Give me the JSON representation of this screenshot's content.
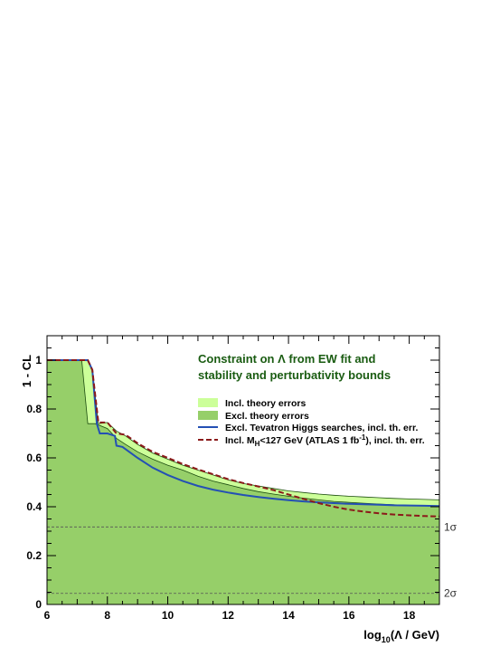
{
  "chart_data": {
    "type": "area",
    "title_lines": [
      "Constraint on Λ from EW fit and",
      "stability and perturbativity bounds"
    ],
    "xlabel": "log₁₀(Λ / GeV)",
    "ylabel": "1 - CL",
    "xlim": [
      6,
      19
    ],
    "ylim": [
      0,
      1.1
    ],
    "x_ticks": [
      6,
      8,
      10,
      12,
      14,
      16,
      18
    ],
    "y_ticks": [
      0,
      0.2,
      0.4,
      0.6,
      0.8,
      1
    ],
    "legend_placement": "top-right",
    "reference_lines": [
      {
        "label": "1σ",
        "y": 0.3173
      },
      {
        "label": "2σ",
        "y": 0.0455
      }
    ],
    "colors": {
      "incl_band": "#ccff99",
      "excl_band": "#96cf69",
      "tevatron": "#2450b4",
      "atlas": "#8b1a1a",
      "title": "#1a5c12"
    },
    "series": [
      {
        "name": "Incl. theory errors",
        "kind": "band",
        "color": "#ccff99",
        "x": [
          6,
          7.35,
          7.5,
          7.7,
          8,
          8.3,
          8.6,
          9,
          9.5,
          10,
          10.5,
          11,
          11.5,
          12,
          12.5,
          13,
          13.5,
          14,
          14.5,
          15,
          15.5,
          16,
          16.5,
          17,
          17.5,
          18,
          18.5,
          19
        ],
        "y": [
          1,
          1,
          0.96,
          0.74,
          0.745,
          0.71,
          0.69,
          0.655,
          0.62,
          0.595,
          0.57,
          0.55,
          0.53,
          0.51,
          0.495,
          0.485,
          0.475,
          0.465,
          0.458,
          0.452,
          0.447,
          0.443,
          0.44,
          0.437,
          0.434,
          0.432,
          0.43,
          0.428
        ]
      },
      {
        "name": "Excl. theory errors",
        "kind": "band",
        "color": "#96cf69",
        "x": [
          6,
          7.15,
          7.35,
          7.6,
          8,
          8.3,
          8.6,
          9,
          9.5,
          10,
          10.5,
          11,
          11.5,
          12,
          12.5,
          13,
          13.5,
          14,
          14.5,
          15,
          15.5,
          16,
          16.5,
          17,
          17.5,
          18,
          18.5,
          19
        ],
        "y": [
          1,
          1,
          0.74,
          0.74,
          0.72,
          0.68,
          0.655,
          0.625,
          0.595,
          0.57,
          0.55,
          0.525,
          0.505,
          0.49,
          0.475,
          0.462,
          0.452,
          0.443,
          0.435,
          0.428,
          0.422,
          0.418,
          0.414,
          0.411,
          0.408,
          0.406,
          0.404,
          0.402
        ]
      },
      {
        "name": "Excl. Tevatron Higgs searches, incl. th. err.",
        "kind": "line",
        "color": "#2450b4",
        "x": [
          6,
          7.35,
          7.5,
          7.65,
          7.75,
          8,
          8.25,
          8.3,
          8.5,
          9,
          9.5,
          10,
          10.5,
          11,
          11.5,
          12,
          12.5,
          13,
          13.5,
          14,
          14.5,
          15,
          15.5,
          16,
          16.5,
          17,
          17.5,
          18,
          18.5,
          19
        ],
        "y": [
          1,
          1,
          0.96,
          0.74,
          0.7,
          0.7,
          0.69,
          0.65,
          0.645,
          0.6,
          0.56,
          0.53,
          0.505,
          0.485,
          0.47,
          0.458,
          0.448,
          0.44,
          0.433,
          0.427,
          0.422,
          0.418,
          0.415,
          0.412,
          0.41,
          0.408,
          0.406,
          0.405,
          0.404,
          0.403
        ]
      },
      {
        "name": "Incl. M_H<127 GeV (ATLAS 1 fb⁻¹), incl. th. err.",
        "kind": "dashed-line",
        "color": "#8b1a1a",
        "x": [
          6,
          7.35,
          7.5,
          7.7,
          8,
          8.3,
          8.6,
          9,
          9.5,
          10,
          10.5,
          11,
          11.5,
          12,
          12.5,
          13,
          13.5,
          14,
          14.5,
          15,
          15.5,
          16,
          16.5,
          17,
          17.5,
          18,
          18.5,
          19
        ],
        "y": [
          1,
          1,
          0.96,
          0.745,
          0.745,
          0.7,
          0.695,
          0.66,
          0.625,
          0.6,
          0.575,
          0.553,
          0.533,
          0.513,
          0.497,
          0.483,
          0.468,
          0.45,
          0.432,
          0.415,
          0.4,
          0.388,
          0.38,
          0.373,
          0.368,
          0.365,
          0.362,
          0.36
        ]
      }
    ]
  },
  "legend": {
    "incl_band": "Incl. theory errors",
    "excl_band": "Excl. theory errors",
    "tevatron": "Excl. Tevatron Higgs searches, incl. th. err.",
    "atlas_prefix": "Incl. M",
    "atlas_sub": "H",
    "atlas_mid": "<127 GeV (ATLAS 1 fb",
    "atlas_sup": "-1",
    "atlas_suffix": "), incl. th. err."
  },
  "axis_title_parts": {
    "x_prefix": "log",
    "x_sub": "10",
    "x_suffix": "(Λ / GeV)",
    "y": "1 - CL"
  }
}
